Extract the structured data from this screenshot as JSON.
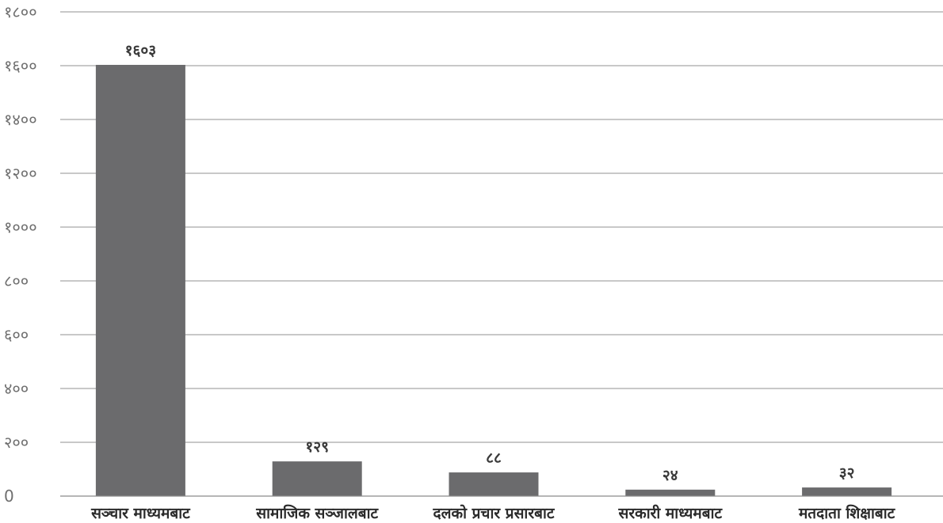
{
  "chart_data": {
    "type": "bar",
    "title": "",
    "xlabel": "",
    "ylabel": "",
    "categories": [
      "सञ्चार माध्यमबाट",
      "सामाजिक सञ्जालबाट",
      "दलको प्रचार प्रसारबाट",
      "सरकारी माध्यमबाट",
      "मतदाता शिक्षाबाट"
    ],
    "values": [
      1603,
      129,
      88,
      24,
      32
    ],
    "value_labels": [
      "१६०३",
      "१२९",
      "८८",
      "२४",
      "३२"
    ],
    "ylim": [
      0,
      1800
    ],
    "yticks": [
      0,
      200,
      400,
      600,
      800,
      1000,
      1200,
      1400,
      1600,
      1800
    ],
    "ytick_labels": [
      "0",
      "२००",
      "४००",
      "६००",
      "८००",
      "१०००",
      "१२००",
      "१४००",
      "१६००",
      "१८००"
    ],
    "grid": true,
    "legend": "none",
    "bar_color": "#6b6b6d"
  }
}
